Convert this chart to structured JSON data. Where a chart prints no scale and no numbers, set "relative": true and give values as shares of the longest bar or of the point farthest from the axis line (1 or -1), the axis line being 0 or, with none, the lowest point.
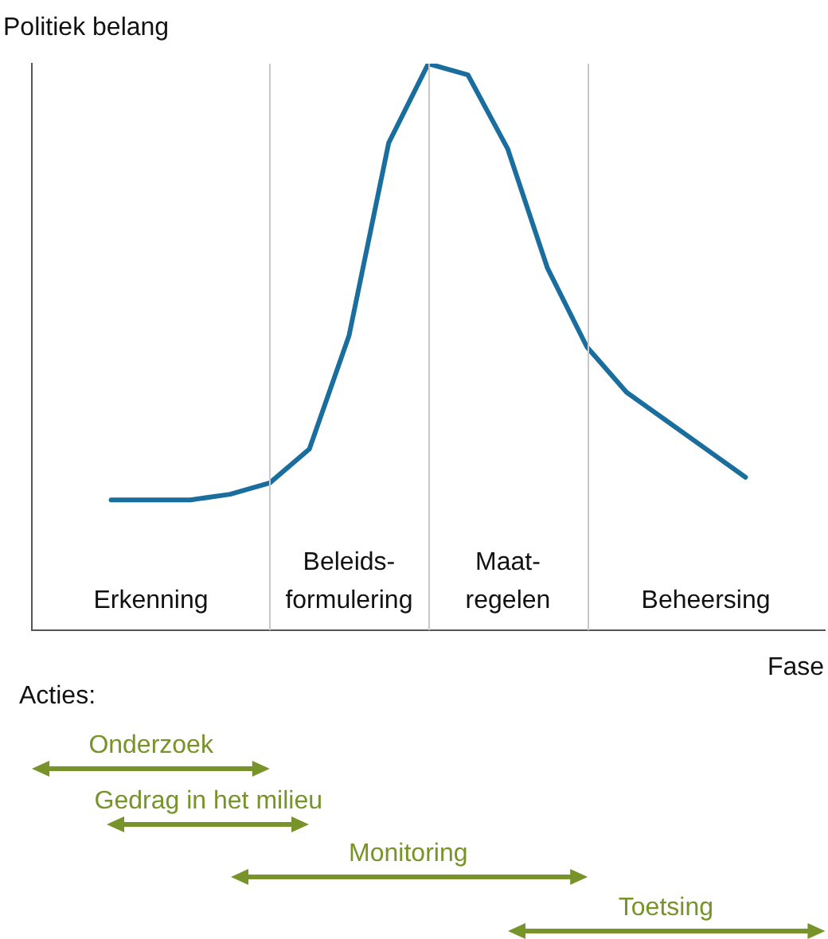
{
  "chart_data": {
    "type": "line",
    "ylabel": "Politiek belang",
    "xlabel": "Fase",
    "relative": true,
    "color": "#1a6e9e",
    "marker": "none",
    "categories": [
      null,
      null,
      null,
      null,
      null,
      null,
      null,
      null,
      null,
      null,
      null,
      null,
      null,
      null,
      null,
      null,
      null,
      null,
      null,
      null,
      null
    ],
    "values": [
      null,
      null,
      0.23,
      0.23,
      0.23,
      0.24,
      0.26,
      0.32,
      0.52,
      0.86,
      1.0,
      0.98,
      0.85,
      0.64,
      0.5,
      0.42,
      0.37,
      0.32,
      0.27,
      null,
      null
    ],
    "annotations": [
      "Erkenning",
      "Beleids-\nformulering",
      "Maat-\nregelen",
      "Beheersing",
      "Acties:",
      "Onderzoek",
      "Gedrag in het milieu",
      "Monitoring",
      "Toetsing"
    ]
  }
}
